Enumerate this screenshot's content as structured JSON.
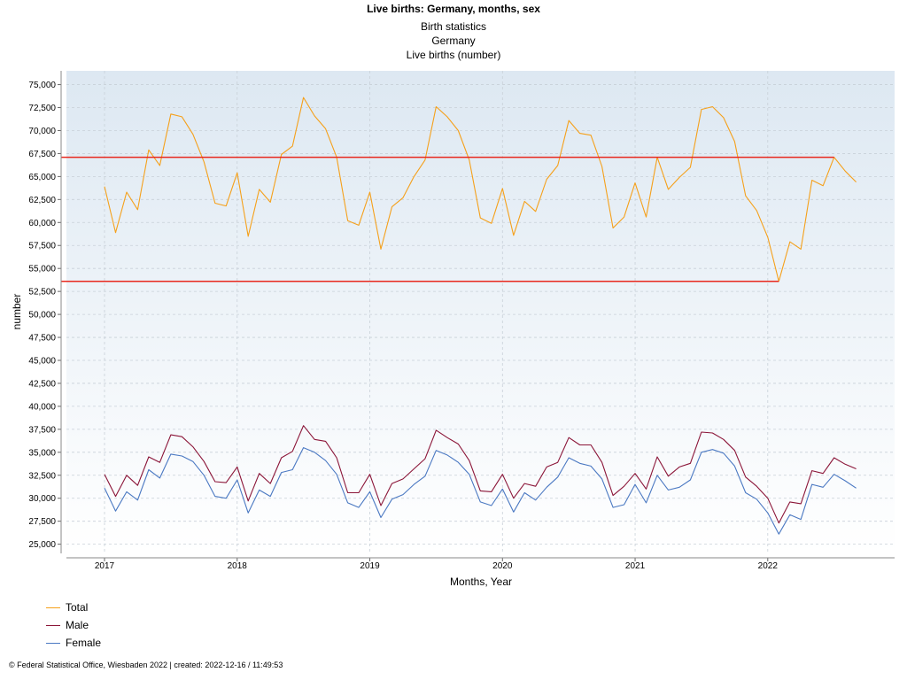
{
  "header": {
    "title": "Live births: Germany, months, sex",
    "subtitle_1": "Birth statistics",
    "subtitle_2": "Germany",
    "subtitle_3": "Live births (number)"
  },
  "footer": {
    "text": "© Federal Statistical Office, Wiesbaden 2022 | created: 2022-12-16 / 11:49:53"
  },
  "colors": {
    "total": "#f5a01a",
    "male": "#8b1538",
    "female": "#4a78c2",
    "reference_line": "#e8281e"
  },
  "chart_data": {
    "type": "line",
    "title": "Live births: Germany, months, sex",
    "xlabel": "Months, Year",
    "ylabel": "number",
    "ylim": [
      24000,
      76500
    ],
    "yticks": [
      25000,
      27500,
      30000,
      32500,
      35000,
      37500,
      40000,
      42500,
      45000,
      47500,
      50000,
      52500,
      55000,
      57500,
      60000,
      62500,
      65000,
      67500,
      70000,
      72500,
      75000
    ],
    "ytick_labels": [
      "25,000",
      "27,500",
      "30,000",
      "32,500",
      "35,000",
      "37,500",
      "40,000",
      "42,500",
      "45,000",
      "47,500",
      "50,000",
      "52,500",
      "55,000",
      "57,500",
      "60,000",
      "62,500",
      "65,000",
      "67,500",
      "70,000",
      "72,500",
      "75,000"
    ],
    "x_start": "2017-01",
    "xticks": [
      {
        "month": "2017-01",
        "label": "2017"
      },
      {
        "month": "2018-01",
        "label": "2018"
      },
      {
        "month": "2019-01",
        "label": "2019"
      },
      {
        "month": "2020-01",
        "label": "2020"
      },
      {
        "month": "2021-01",
        "label": "2021"
      },
      {
        "month": "2022-01",
        "label": "2022"
      }
    ],
    "grid": true,
    "legend": "bottom-left",
    "series": [
      {
        "name": "Total",
        "values": [
          63900,
          58900,
          63300,
          61400,
          67900,
          66200,
          71800,
          71500,
          69600,
          66600,
          62100,
          61800,
          65400,
          58500,
          63600,
          62200,
          67400,
          68300,
          73600,
          71600,
          70200,
          67100,
          60200,
          59700,
          63300,
          57100,
          61700,
          62700,
          65000,
          66800,
          72600,
          71500,
          70000,
          66800,
          60500,
          59900,
          63700,
          58600,
          62300,
          61200,
          64700,
          66200,
          71100,
          69700,
          69500,
          66100,
          59400,
          60600,
          64300,
          60600,
          67100,
          63600,
          64900,
          66000,
          72300,
          72600,
          71400,
          68800,
          62900,
          61300,
          58400,
          53600,
          57900,
          57100,
          64600,
          64000,
          67100,
          65600,
          64400
        ]
      },
      {
        "name": "Male",
        "values": [
          32600,
          30200,
          32500,
          31400,
          34500,
          33900,
          36900,
          36700,
          35600,
          34000,
          31800,
          31700,
          33400,
          29700,
          32700,
          31600,
          34400,
          35100,
          37900,
          36400,
          36200,
          34400,
          30600,
          30600,
          32600,
          29200,
          31600,
          32100,
          33200,
          34300,
          37400,
          36600,
          35900,
          34100,
          30800,
          30700,
          32600,
          30000,
          31600,
          31300,
          33400,
          33900,
          36600,
          35800,
          35800,
          33900,
          30300,
          31300,
          32700,
          31000,
          34500,
          32400,
          33400,
          33800,
          37200,
          37100,
          36400,
          35200,
          32300,
          31300,
          30000,
          27300,
          29600,
          29400,
          33000,
          32700,
          34400,
          33700,
          33200
        ]
      },
      {
        "name": "Female",
        "values": [
          31100,
          28600,
          30700,
          29800,
          33100,
          32200,
          34800,
          34600,
          34000,
          32500,
          30200,
          30000,
          32000,
          28400,
          30900,
          30200,
          32800,
          33100,
          35500,
          35000,
          34100,
          32600,
          29500,
          29000,
          30700,
          27900,
          29900,
          30400,
          31500,
          32400,
          35200,
          34700,
          33900,
          32600,
          29600,
          29200,
          31000,
          28500,
          30600,
          29800,
          31200,
          32300,
          34400,
          33800,
          33500,
          32100,
          29000,
          29300,
          31500,
          29500,
          32500,
          30900,
          31200,
          32000,
          35000,
          35300,
          34900,
          33500,
          30600,
          29900,
          28400,
          26100,
          28200,
          27700,
          31500,
          31200,
          32600,
          31900,
          31100
        ]
      }
    ],
    "reference_lines": [
      {
        "value": 67100,
        "to": "2022-07"
      },
      {
        "value": 53600,
        "to": "2022-02"
      }
    ]
  }
}
